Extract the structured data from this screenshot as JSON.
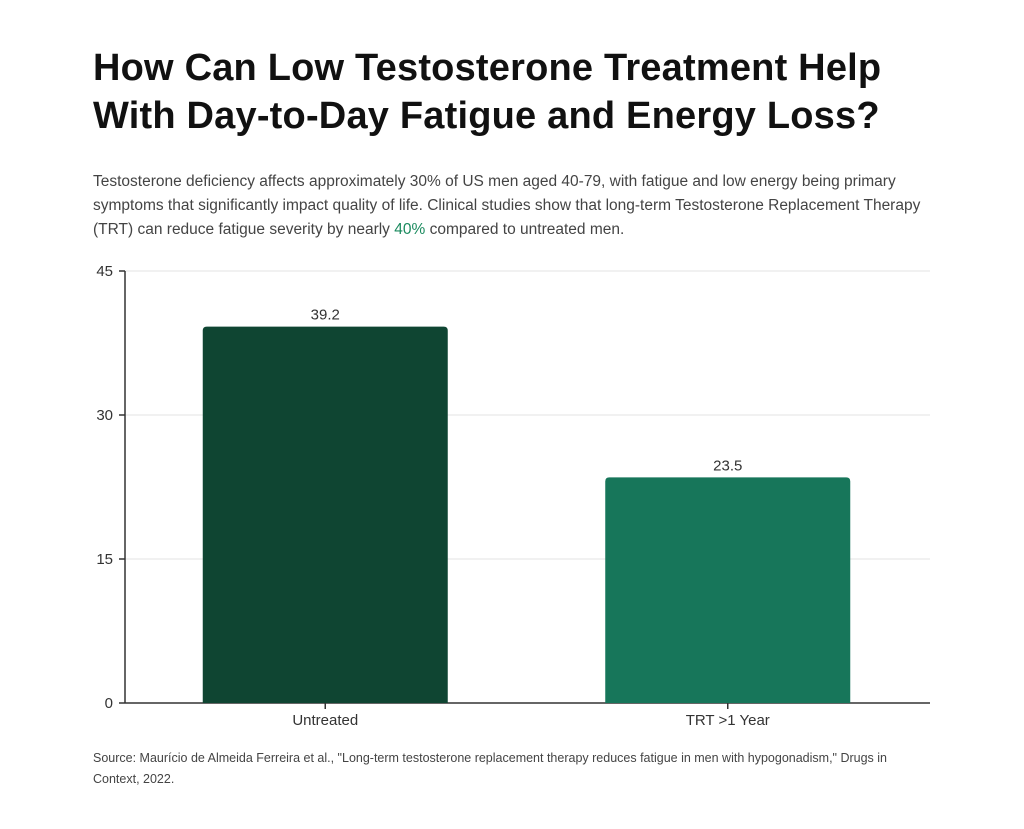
{
  "header": {
    "title_line1": "How Can Low Testosterone Treatment Help",
    "title_line2": "With Day-to-Day Fatigue and Energy Loss?"
  },
  "description": {
    "before": "Testosterone deficiency affects approximately 30% of US men aged 40-79, with fatigue and low energy being primary symptoms that significantly impact quality of life. Clinical studies show that long-term Testosterone Replacement Therapy (TRT) can reduce fatigue severity by nearly ",
    "highlight": "40%",
    "after": " compared to untreated men."
  },
  "source": "Source: Maurício de Almeida Ferreira et al., \"Long-term testosterone replacement therapy reduces fatigue in men with hypogonadism,\" Drugs in Context, 2022.",
  "colors": {
    "bar_untreated": "#0f4532",
    "bar_trt": "#17765a",
    "highlight": "#1a8a5e",
    "grid": "#e3e3e3",
    "axis": "#333333"
  },
  "chart_data": {
    "type": "bar",
    "categories": [
      "Untreated",
      "TRT >1 Year"
    ],
    "values": [
      39.2,
      23.5
    ],
    "data_labels": [
      "39.2",
      "23.5"
    ],
    "title": "",
    "xlabel": "",
    "ylabel": "",
    "ylim": [
      0,
      45
    ],
    "yticks": [
      0,
      15,
      30,
      45
    ],
    "grid": true,
    "legend": "none"
  }
}
